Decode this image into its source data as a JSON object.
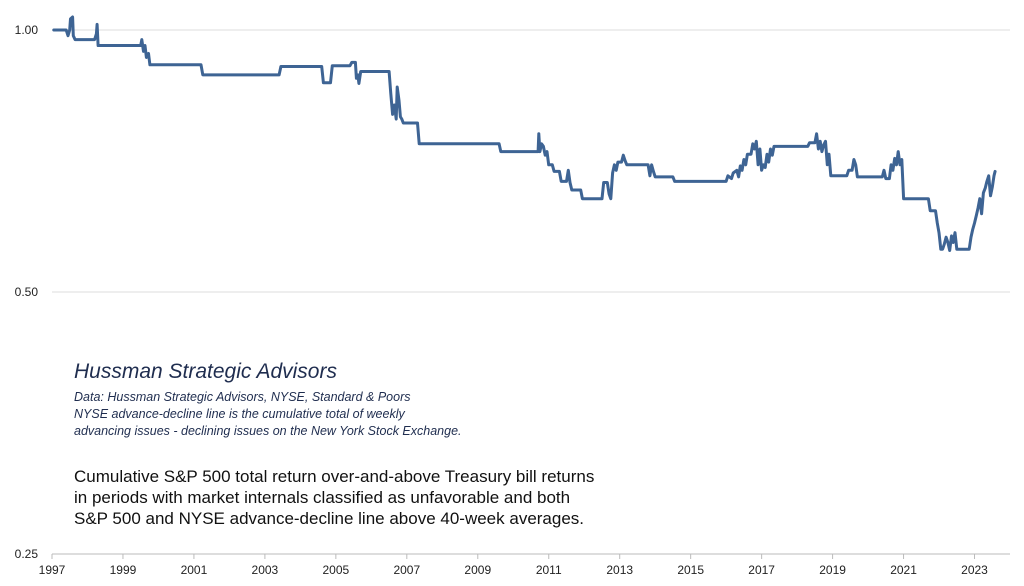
{
  "chart_data": {
    "type": "line",
    "scale": "log",
    "ylim": [
      0.25,
      1.06
    ],
    "xlim": [
      1997.0,
      2024.0
    ],
    "grid": true,
    "colors": {
      "series": "#3e6494",
      "grid": "#dcdcdc",
      "text": "#1f2d4f"
    },
    "y_ticks": [
      {
        "value": 1.0,
        "label": "1.00"
      },
      {
        "value": 0.5,
        "label": "0.50"
      },
      {
        "value": 0.25,
        "label": "0.25"
      }
    ],
    "x_ticks": [
      {
        "value": 1997,
        "label": "1997"
      },
      {
        "value": 1999,
        "label": "1999"
      },
      {
        "value": 2001,
        "label": "2001"
      },
      {
        "value": 2003,
        "label": "2003"
      },
      {
        "value": 2005,
        "label": "2005"
      },
      {
        "value": 2007,
        "label": "2007"
      },
      {
        "value": 2009,
        "label": "2009"
      },
      {
        "value": 2011,
        "label": "2011"
      },
      {
        "value": 2013,
        "label": "2013"
      },
      {
        "value": 2015,
        "label": "2015"
      },
      {
        "value": 2017,
        "label": "2017"
      },
      {
        "value": 2019,
        "label": "2019"
      },
      {
        "value": 2021,
        "label": "2021"
      },
      {
        "value": 2023,
        "label": "2023"
      }
    ],
    "series": [
      {
        "points": [
          [
            1997.05,
            1.0
          ],
          [
            1997.4,
            1.0
          ],
          [
            1997.45,
            0.985
          ],
          [
            1997.5,
            1.0
          ],
          [
            1997.52,
            1.03
          ],
          [
            1997.58,
            1.035
          ],
          [
            1997.6,
            0.985
          ],
          [
            1997.65,
            0.975
          ],
          [
            1998.2,
            0.975
          ],
          [
            1998.25,
            0.99
          ],
          [
            1998.27,
            1.015
          ],
          [
            1998.3,
            0.96
          ],
          [
            1999.5,
            0.96
          ],
          [
            1999.53,
            0.975
          ],
          [
            1999.58,
            0.945
          ],
          [
            1999.62,
            0.96
          ],
          [
            1999.66,
            0.93
          ],
          [
            1999.72,
            0.94
          ],
          [
            1999.76,
            0.912
          ],
          [
            2001.2,
            0.912
          ],
          [
            2001.25,
            0.888
          ],
          [
            2003.4,
            0.888
          ],
          [
            2003.45,
            0.908
          ],
          [
            2004.6,
            0.908
          ],
          [
            2004.65,
            0.87
          ],
          [
            2004.85,
            0.87
          ],
          [
            2004.9,
            0.91
          ],
          [
            2005.4,
            0.91
          ],
          [
            2005.45,
            0.918
          ],
          [
            2005.55,
            0.918
          ],
          [
            2005.58,
            0.88
          ],
          [
            2005.62,
            0.888
          ],
          [
            2005.65,
            0.868
          ],
          [
            2005.7,
            0.896
          ],
          [
            2006.5,
            0.896
          ],
          [
            2006.55,
            0.845
          ],
          [
            2006.6,
            0.8
          ],
          [
            2006.65,
            0.82
          ],
          [
            2006.7,
            0.79
          ],
          [
            2006.73,
            0.86
          ],
          [
            2006.78,
            0.83
          ],
          [
            2006.82,
            0.795
          ],
          [
            2006.86,
            0.79
          ],
          [
            2006.9,
            0.782
          ],
          [
            2007.3,
            0.782
          ],
          [
            2007.35,
            0.74
          ],
          [
            2009.6,
            0.74
          ],
          [
            2009.65,
            0.725
          ],
          [
            2010.7,
            0.725
          ],
          [
            2010.72,
            0.76
          ],
          [
            2010.75,
            0.725
          ],
          [
            2010.8,
            0.74
          ],
          [
            2010.85,
            0.735
          ],
          [
            2010.9,
            0.718
          ],
          [
            2010.95,
            0.725
          ],
          [
            2011.0,
            0.7
          ],
          [
            2011.1,
            0.7
          ],
          [
            2011.15,
            0.688
          ],
          [
            2011.3,
            0.688
          ],
          [
            2011.35,
            0.67
          ],
          [
            2011.5,
            0.67
          ],
          [
            2011.55,
            0.69
          ],
          [
            2011.6,
            0.668
          ],
          [
            2011.65,
            0.655
          ],
          [
            2011.9,
            0.655
          ],
          [
            2011.95,
            0.64
          ],
          [
            2012.5,
            0.64
          ],
          [
            2012.55,
            0.668
          ],
          [
            2012.65,
            0.668
          ],
          [
            2012.7,
            0.648
          ],
          [
            2012.75,
            0.64
          ],
          [
            2012.8,
            0.685
          ],
          [
            2012.85,
            0.7
          ],
          [
            2012.9,
            0.69
          ],
          [
            2012.95,
            0.705
          ],
          [
            2013.05,
            0.705
          ],
          [
            2013.1,
            0.718
          ],
          [
            2013.15,
            0.708
          ],
          [
            2013.2,
            0.7
          ],
          [
            2013.8,
            0.7
          ],
          [
            2013.85,
            0.68
          ],
          [
            2013.9,
            0.7
          ],
          [
            2013.95,
            0.688
          ],
          [
            2014.0,
            0.678
          ],
          [
            2014.5,
            0.678
          ],
          [
            2014.55,
            0.67
          ],
          [
            2016.0,
            0.67
          ],
          [
            2016.05,
            0.68
          ],
          [
            2016.15,
            0.675
          ],
          [
            2016.2,
            0.685
          ],
          [
            2016.3,
            0.69
          ],
          [
            2016.35,
            0.678
          ],
          [
            2016.4,
            0.698
          ],
          [
            2016.45,
            0.69
          ],
          [
            2016.5,
            0.71
          ],
          [
            2016.55,
            0.7
          ],
          [
            2016.6,
            0.72
          ],
          [
            2016.7,
            0.72
          ],
          [
            2016.75,
            0.74
          ],
          [
            2016.8,
            0.73
          ],
          [
            2016.85,
            0.745
          ],
          [
            2016.9,
            0.7
          ],
          [
            2016.95,
            0.73
          ],
          [
            2017.0,
            0.69
          ],
          [
            2017.05,
            0.7
          ],
          [
            2017.1,
            0.695
          ],
          [
            2017.15,
            0.72
          ],
          [
            2017.2,
            0.705
          ],
          [
            2017.25,
            0.73
          ],
          [
            2017.3,
            0.718
          ],
          [
            2017.35,
            0.735
          ],
          [
            2018.3,
            0.735
          ],
          [
            2018.35,
            0.742
          ],
          [
            2018.5,
            0.742
          ],
          [
            2018.55,
            0.76
          ],
          [
            2018.6,
            0.73
          ],
          [
            2018.65,
            0.745
          ],
          [
            2018.7,
            0.725
          ],
          [
            2018.75,
            0.738
          ],
          [
            2018.8,
            0.745
          ],
          [
            2018.85,
            0.7
          ],
          [
            2018.9,
            0.72
          ],
          [
            2018.95,
            0.68
          ],
          [
            2019.4,
            0.68
          ],
          [
            2019.45,
            0.69
          ],
          [
            2019.55,
            0.69
          ],
          [
            2019.6,
            0.71
          ],
          [
            2019.65,
            0.7
          ],
          [
            2019.7,
            0.678
          ],
          [
            2020.4,
            0.678
          ],
          [
            2020.45,
            0.69
          ],
          [
            2020.5,
            0.675
          ],
          [
            2020.6,
            0.675
          ],
          [
            2020.65,
            0.7
          ],
          [
            2020.7,
            0.69
          ],
          [
            2020.75,
            0.712
          ],
          [
            2020.8,
            0.7
          ],
          [
            2020.85,
            0.725
          ],
          [
            2020.9,
            0.7
          ],
          [
            2020.95,
            0.71
          ],
          [
            2021.0,
            0.64
          ],
          [
            2021.7,
            0.64
          ],
          [
            2021.75,
            0.62
          ],
          [
            2021.9,
            0.62
          ],
          [
            2021.95,
            0.6
          ],
          [
            2022.0,
            0.585
          ],
          [
            2022.05,
            0.56
          ],
          [
            2022.1,
            0.56
          ],
          [
            2022.15,
            0.568
          ],
          [
            2022.2,
            0.578
          ],
          [
            2022.25,
            0.57
          ],
          [
            2022.3,
            0.558
          ],
          [
            2022.35,
            0.58
          ],
          [
            2022.4,
            0.57
          ],
          [
            2022.45,
            0.585
          ],
          [
            2022.5,
            0.56
          ],
          [
            2022.85,
            0.56
          ],
          [
            2022.9,
            0.578
          ],
          [
            2022.95,
            0.59
          ],
          [
            2023.0,
            0.6
          ],
          [
            2023.05,
            0.612
          ],
          [
            2023.1,
            0.625
          ],
          [
            2023.15,
            0.64
          ],
          [
            2023.2,
            0.615
          ],
          [
            2023.25,
            0.65
          ],
          [
            2023.3,
            0.658
          ],
          [
            2023.35,
            0.67
          ],
          [
            2023.4,
            0.68
          ],
          [
            2023.45,
            0.645
          ],
          [
            2023.5,
            0.66
          ],
          [
            2023.55,
            0.68
          ],
          [
            2023.58,
            0.688
          ]
        ]
      }
    ]
  },
  "annotation": {
    "title": "Hussman Strategic Advisors",
    "notes": [
      "Data: Hussman Strategic Advisors, NYSE,  Standard & Poors",
      "NYSE advance-decline line is the cumulative total of weekly",
      "advancing issues - declining issues on the New York Stock Exchange."
    ],
    "description": [
      "Cumulative S&P 500 total return over-and-above Treasury bill returns",
      "in periods with market internals classified as unfavorable and both",
      "S&P 500 and NYSE advance-decline line above 40-week averages."
    ]
  }
}
